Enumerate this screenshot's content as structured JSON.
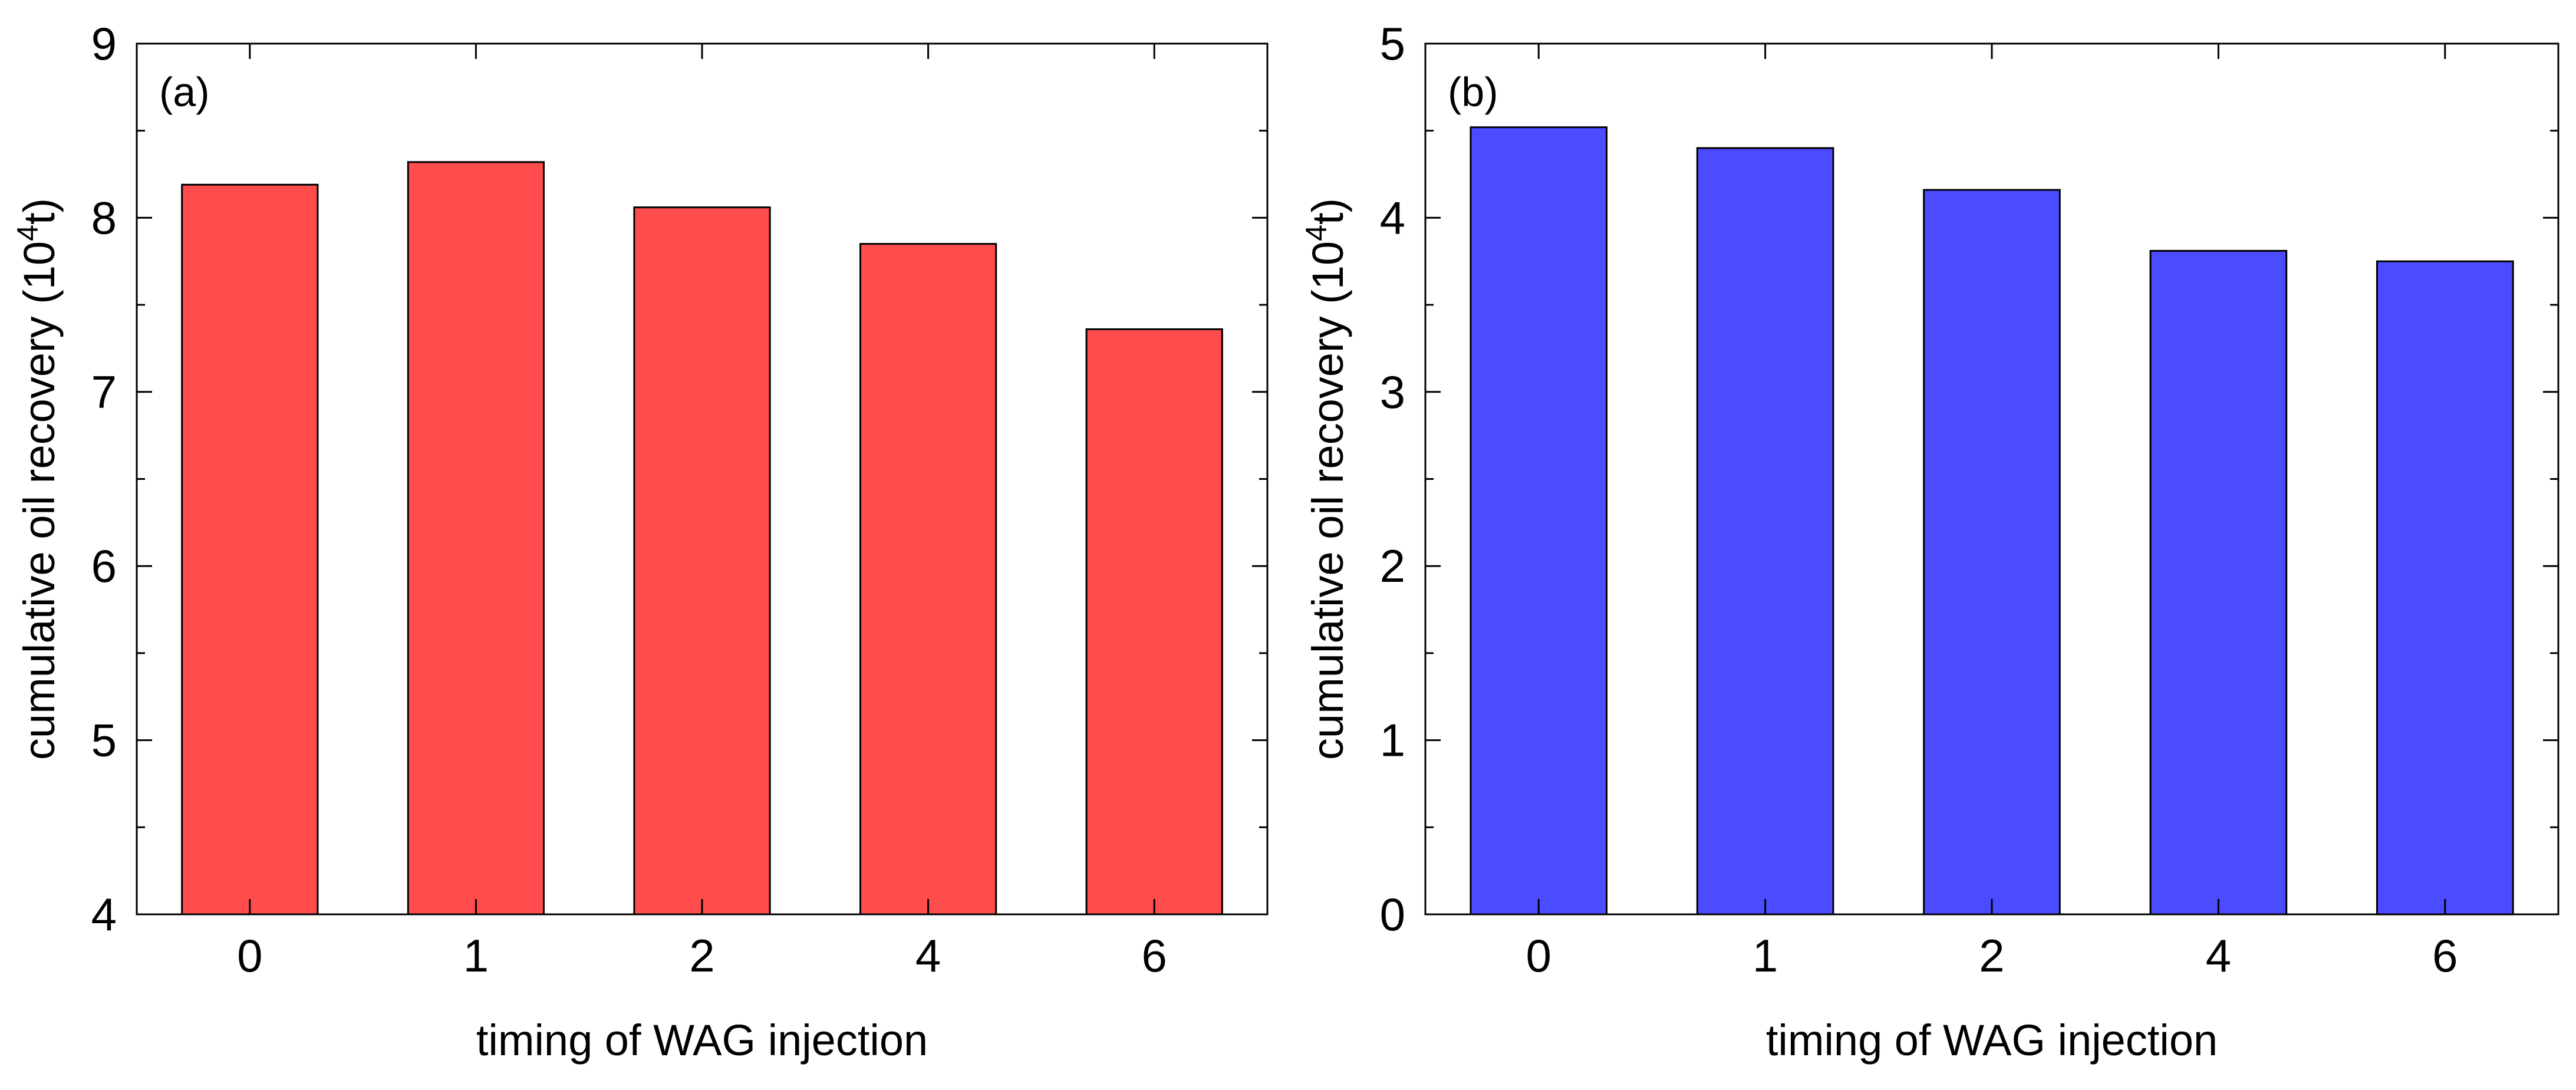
{
  "chart_data": [
    {
      "type": "bar",
      "panel_label": "(a)",
      "categories": [
        "0",
        "1",
        "2",
        "4",
        "6"
      ],
      "values": [
        8.19,
        8.32,
        8.06,
        7.85,
        7.36
      ],
      "xlabel": "timing of WAG injection",
      "ylabel": "cumulative oil recovery (10",
      "ylabel_superscript": "4",
      "ylabel_suffix": "t)",
      "ylim": [
        4,
        9
      ],
      "yticks": [
        "4",
        "5",
        "6",
        "7",
        "8",
        "9"
      ],
      "minor_tick_step": 0.5,
      "bar_color": "#ff4d4d",
      "grid": false,
      "legend": "none"
    },
    {
      "type": "bar",
      "panel_label": "(b)",
      "categories": [
        "0",
        "1",
        "2",
        "4",
        "6"
      ],
      "values": [
        4.52,
        4.4,
        4.16,
        3.81,
        3.75
      ],
      "xlabel": "timing of WAG injection",
      "ylabel": "cumulative oil recovery (10",
      "ylabel_superscript": "4",
      "ylabel_suffix": "t)",
      "ylim": [
        0,
        5
      ],
      "yticks": [
        "0",
        "1",
        "2",
        "3",
        "4",
        "5"
      ],
      "minor_tick_step": 0.5,
      "bar_color": "#4b4bff",
      "grid": false,
      "legend": "none"
    }
  ]
}
